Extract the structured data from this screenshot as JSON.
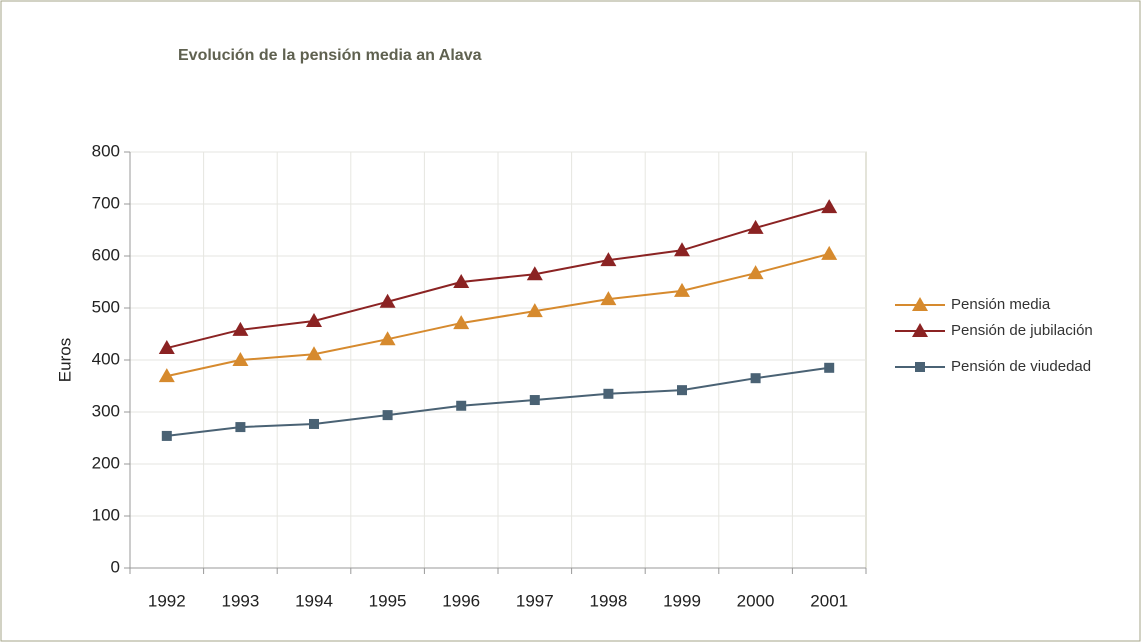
{
  "chart_data": {
    "type": "line",
    "title": "Evolución de la pensión media an Alava",
    "y_label": "Euros",
    "categories": [
      "1992",
      "1993",
      "1994",
      "1995",
      "1996",
      "1997",
      "1998",
      "1999",
      "2000",
      "2001"
    ],
    "series": [
      {
        "name": "Pensión media",
        "color": "#d68a2e",
        "marker": "triangle",
        "values": [
          369,
          400,
          411,
          440,
          471,
          494,
          517,
          533,
          567,
          604
        ]
      },
      {
        "name": "Pensión de jubilación",
        "color": "#8b2323",
        "marker": "triangle",
        "values": [
          423,
          458,
          475,
          512,
          550,
          565,
          592,
          611,
          654,
          694
        ]
      },
      {
        "name": "Pensión de viudedad",
        "color": "#4a6274",
        "marker": "square",
        "values": [
          254,
          271,
          277,
          294,
          312,
          323,
          335,
          342,
          365,
          385
        ]
      }
    ],
    "ylim": [
      0,
      800
    ],
    "yticks": [
      0,
      100,
      200,
      300,
      400,
      500,
      600,
      700,
      800
    ],
    "grid": true,
    "legend": "right"
  }
}
